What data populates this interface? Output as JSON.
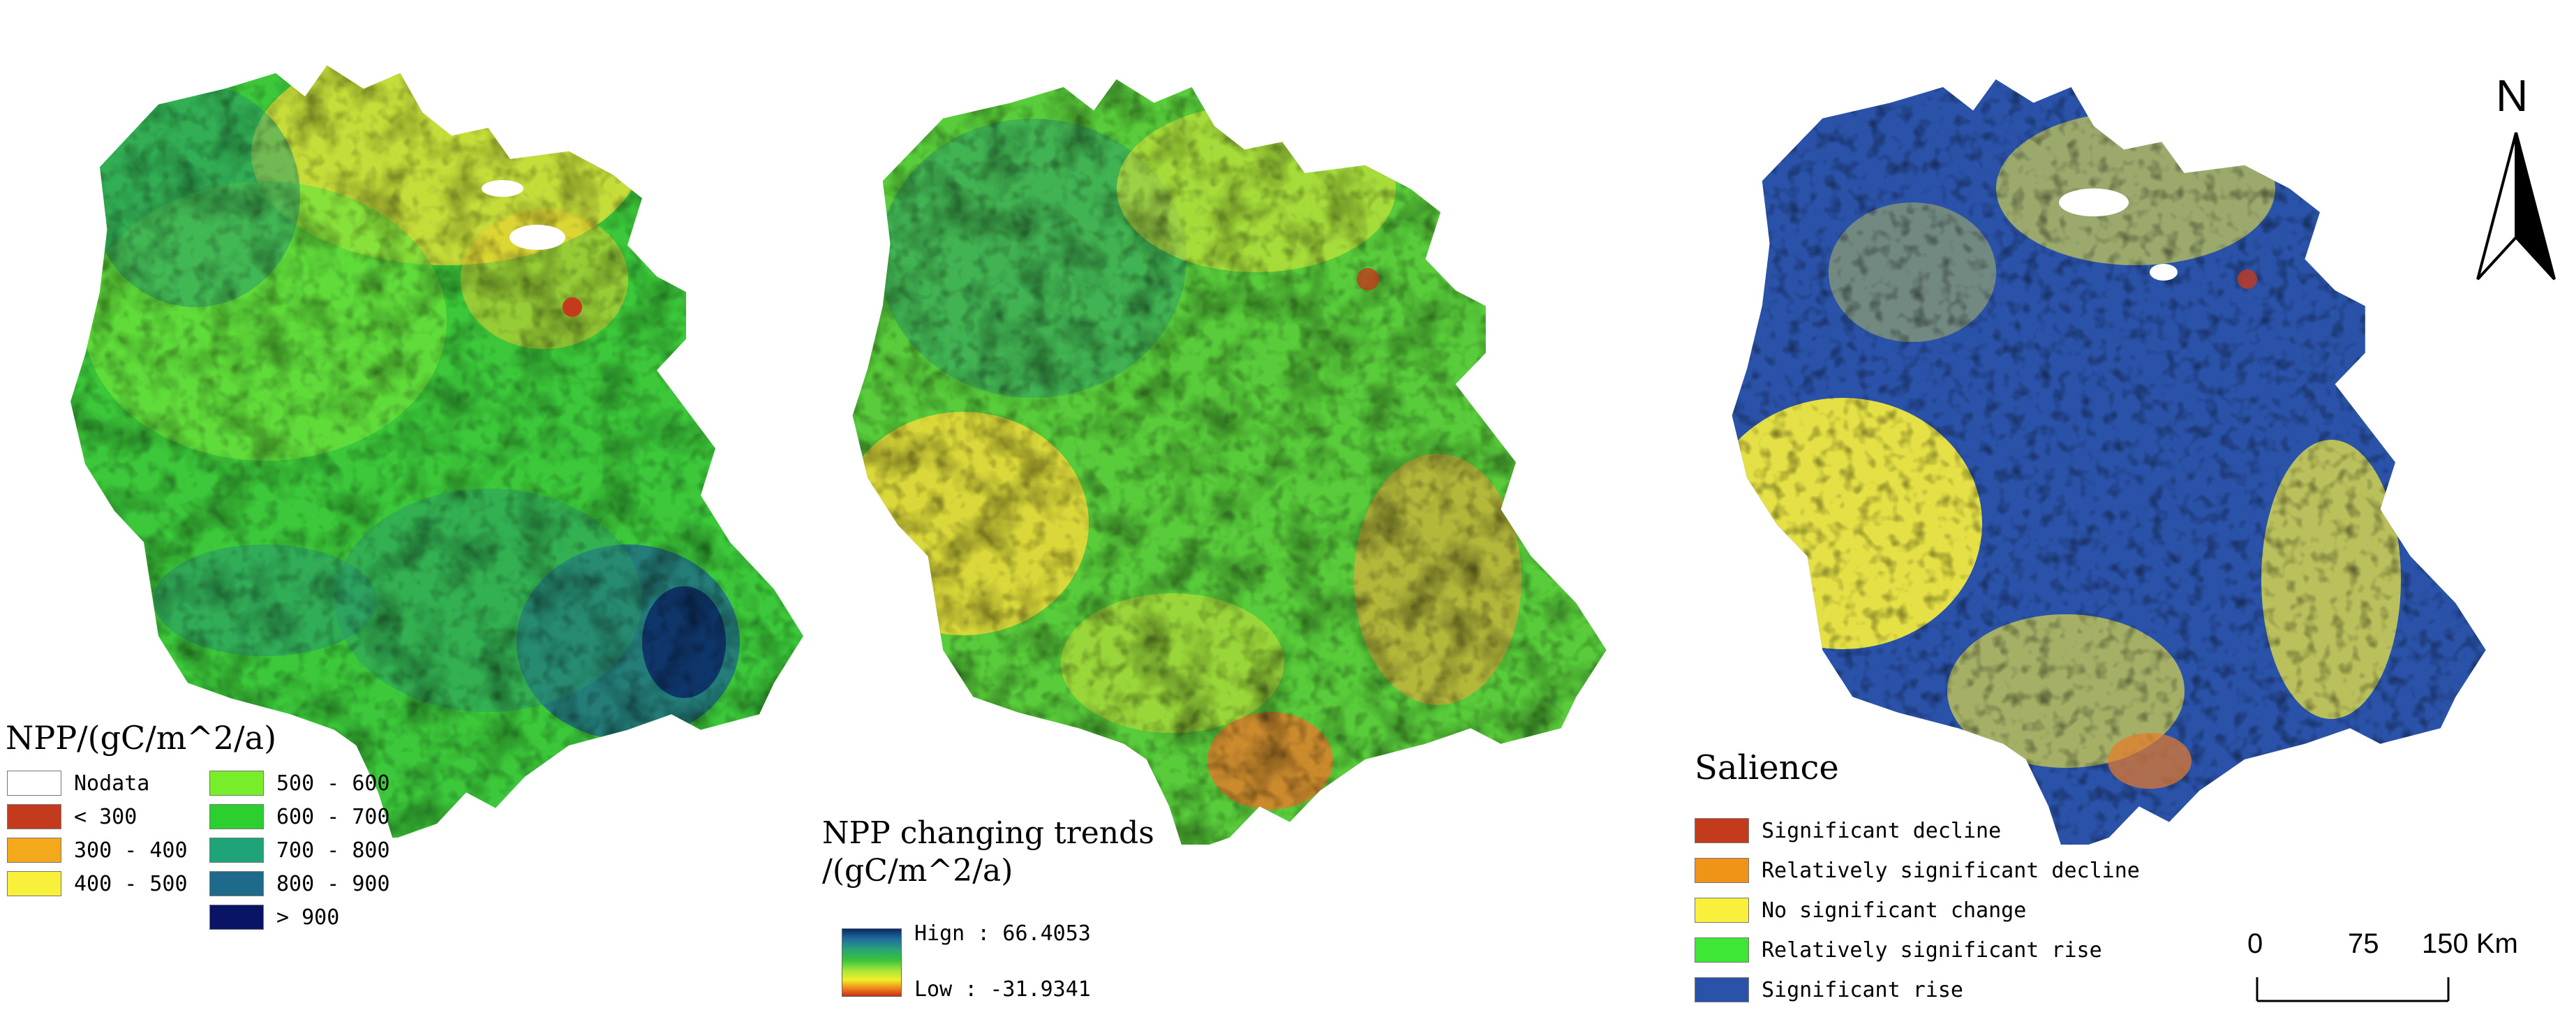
{
  "panel1": {
    "legend_title": "NPP/(gC/m^2/a)",
    "classes": [
      {
        "label": "Nodata",
        "color": "#ffffff"
      },
      {
        "label": "< 300",
        "color": "#c43a1c"
      },
      {
        "label": "300 - 400",
        "color": "#f4a81c"
      },
      {
        "label": "400 - 500",
        "color": "#f8f03a"
      },
      {
        "label": "500 - 600",
        "color": "#78ee2a"
      },
      {
        "label": "600 - 700",
        "color": "#2cd02e"
      },
      {
        "label": "700 - 800",
        "color": "#1fa47a"
      },
      {
        "label": "800 - 900",
        "color": "#1e6a8a"
      },
      {
        "label": "> 900",
        "color": "#0a1466"
      }
    ]
  },
  "panel2": {
    "legend_title_line1": "NPP changing trends",
    "legend_title_line2": "/(gC/m^2/a)",
    "high_label": "Hign : 66.4053",
    "low_label": "Low : -31.9341"
  },
  "panel3": {
    "legend_title": "Salience",
    "classes": [
      {
        "label": "Significant decline",
        "color": "#c43a1c"
      },
      {
        "label": "Relatively significant decline",
        "color": "#f09418"
      },
      {
        "label": "No significant change",
        "color": "#f8f03a"
      },
      {
        "label": "Relatively significant rise",
        "color": "#3ee636"
      },
      {
        "label": "Significant rise",
        "color": "#2a52a8"
      }
    ]
  },
  "north_arrow": {
    "label": "N"
  },
  "scale_bar": {
    "tick_0": "0",
    "tick_1": "75",
    "tick_2": "150 Km"
  }
}
